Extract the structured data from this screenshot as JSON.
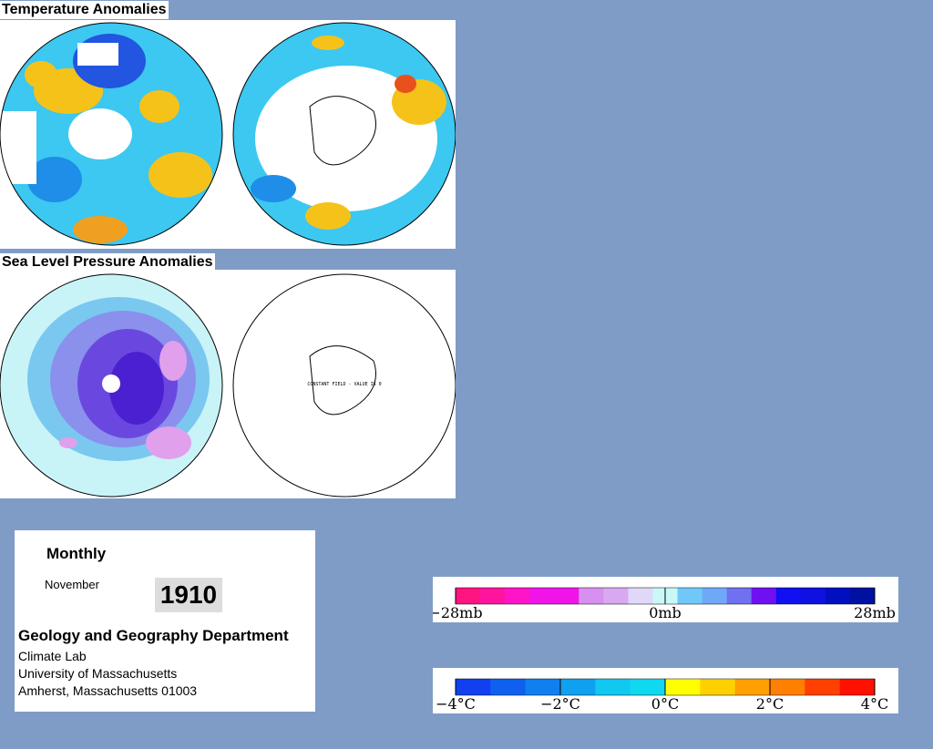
{
  "sections": [
    {
      "title": "Temperature Anomalies"
    },
    {
      "title": "Sea Level Pressure Anomalies",
      "note": "CONSTANT FIELD - VALUE IS 0"
    }
  ],
  "info": {
    "period": "Monthly",
    "month": "November",
    "year": "1910",
    "department": "Geology and Geography Department",
    "lines": [
      "Climate Lab",
      "University of Massachusetts",
      "Amherst, Massachusetts 01003"
    ]
  },
  "legends": [
    {
      "labels": [
        "−28mb",
        "0mb",
        "28mb"
      ]
    },
    {
      "labels": [
        "−4°C",
        "−2°C",
        "0°C",
        "2°C",
        "4°C"
      ]
    }
  ]
}
